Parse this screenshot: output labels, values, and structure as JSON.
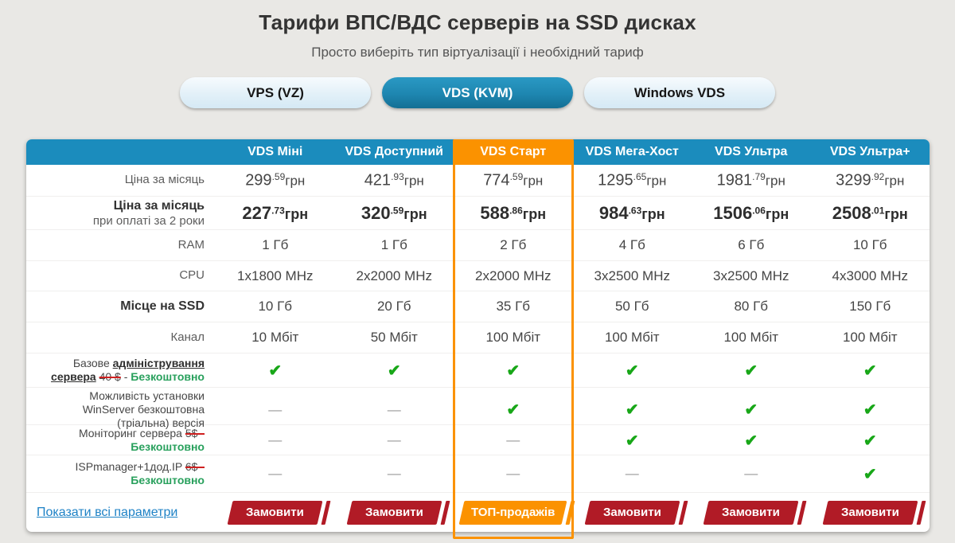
{
  "page": {
    "title": "Тарифи ВПС/ВДС серверів на SSD дисках",
    "subtitle": "Просто виберіть тип віртуалізації і необхідний тариф"
  },
  "tabs": [
    {
      "label": "VPS (VZ)",
      "active": false
    },
    {
      "label": "VDS (KVM)",
      "active": true
    },
    {
      "label": "Windows VDS",
      "active": false
    }
  ],
  "icons": {
    "check_icon": "✔",
    "dash_icon": "—"
  },
  "colors": {
    "header_blue": "#1b8cbd",
    "active_tab_blue": "#1e86b0",
    "highlight_orange": "#fb9200",
    "order_button_red": "#b11b26",
    "check_green": "#18a718",
    "free_green": "#28a05c",
    "link_blue": "#1e82c6"
  },
  "table": {
    "currency": "грн",
    "columns": [
      {
        "name": "VDS Міні",
        "highlighted": false
      },
      {
        "name": "VDS Доступний",
        "highlighted": false
      },
      {
        "name": "VDS Старт",
        "highlighted": true
      },
      {
        "name": "VDS Мега-Хост",
        "highlighted": false
      },
      {
        "name": "VDS Ультра",
        "highlighted": false
      },
      {
        "name": "VDS Ультра+",
        "highlighted": false
      }
    ],
    "rows": [
      {
        "kind": "price",
        "label": "Ціна за місяць",
        "bold": false,
        "values": [
          [
            "299",
            "59"
          ],
          [
            "421",
            "93"
          ],
          [
            "774",
            "59"
          ],
          [
            "1295",
            "65"
          ],
          [
            "1981",
            "79"
          ],
          [
            "3299",
            "92"
          ]
        ]
      },
      {
        "kind": "price",
        "label": "Ціна за місяць",
        "sublabel": "при оплаті за 2 роки",
        "bold": true,
        "values": [
          [
            "227",
            "73"
          ],
          [
            "320",
            "59"
          ],
          [
            "588",
            "86"
          ],
          [
            "984",
            "63"
          ],
          [
            "1506",
            "06"
          ],
          [
            "2508",
            "01"
          ]
        ]
      },
      {
        "kind": "text",
        "label": "RAM",
        "label_bold": false,
        "values": [
          "1 Гб",
          "1 Гб",
          "2 Гб",
          "4 Гб",
          "6 Гб",
          "10 Гб"
        ]
      },
      {
        "kind": "text",
        "label": "CPU",
        "label_bold": false,
        "values": [
          "1x1800 MHz",
          "2x2000 MHz",
          "2x2000 MHz",
          "3x2500 MHz",
          "3x2500 MHz",
          "4x3000 MHz"
        ]
      },
      {
        "kind": "text",
        "label": "Місце на SSD",
        "label_bold": true,
        "values": [
          "10 Гб",
          "20 Гб",
          "35 Гб",
          "50 Гб",
          "80 Гб",
          "150 Гб"
        ]
      },
      {
        "kind": "text",
        "label": "Канал",
        "label_bold": false,
        "values": [
          "10 Мбіт",
          "50 Мбіт",
          "100 Мбіт",
          "100 Мбіт",
          "100 Мбіт",
          "100 Мбіт"
        ]
      },
      {
        "kind": "feature",
        "label_parts": [
          {
            "t": "Базове "
          },
          {
            "t": "адміністрування сервера",
            "s": "emph"
          },
          {
            "t": " "
          },
          {
            "t": "40 $",
            "s": "strike"
          },
          {
            "t": " - "
          },
          {
            "t": "Безкоштовно",
            "s": "free"
          }
        ],
        "values": [
          "check",
          "check",
          "check",
          "check",
          "check",
          "check"
        ]
      },
      {
        "kind": "feature",
        "label_parts": [
          {
            "t": "Можливість установки WinServer безкоштовна (тріальна) версія"
          }
        ],
        "values": [
          "dash",
          "dash",
          "check",
          "check",
          "check",
          "check"
        ]
      },
      {
        "kind": "feature",
        "label_parts": [
          {
            "t": "Моніторинг сервера "
          },
          {
            "t": "5$ -",
            "s": "strike"
          },
          {
            "t": " "
          },
          {
            "t": "Безкоштовно",
            "s": "free"
          }
        ],
        "values": [
          "dash",
          "dash",
          "dash",
          "check",
          "check",
          "check"
        ]
      },
      {
        "kind": "feature",
        "label_parts": [
          {
            "t": "ISPmanager+1дод.IP "
          },
          {
            "t": "6$ -",
            "s": "strike"
          },
          {
            "t": " "
          },
          {
            "t": "Безкоштовно",
            "s": "free"
          }
        ],
        "values": [
          "dash",
          "dash",
          "dash",
          "dash",
          "dash",
          "check"
        ]
      }
    ],
    "footer": {
      "show_all_link": "Показати всі параметри",
      "order_button": "Замовити",
      "top_sales_button": "ТОП-продажів"
    }
  }
}
